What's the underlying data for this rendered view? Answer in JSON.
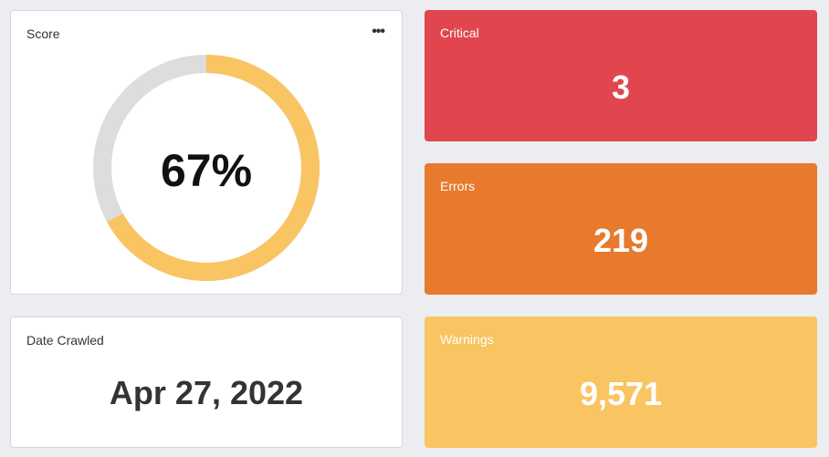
{
  "score": {
    "title": "Score",
    "menu_icon": "more-horizontal-icon",
    "value_label": "67%",
    "percent": 67,
    "fill_color": "#f9c462",
    "track_color": "#dddddd"
  },
  "date_crawled": {
    "title": "Date Crawled",
    "value": "Apr 27, 2022"
  },
  "critical": {
    "title": "Critical",
    "value": "3",
    "color": "#e1464f"
  },
  "errors": {
    "title": "Errors",
    "value": "219",
    "color": "#e77a2d"
  },
  "warnings": {
    "title": "Warnings",
    "value": "9,571",
    "color": "#f9c462"
  }
}
